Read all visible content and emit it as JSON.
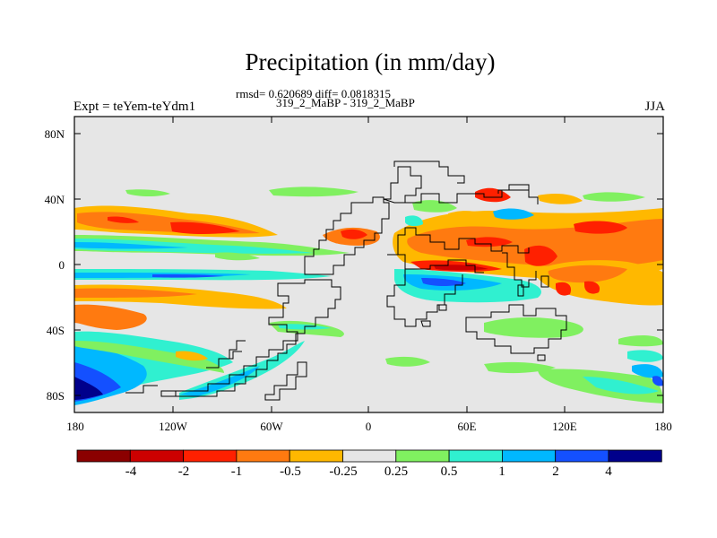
{
  "title": "Precipitation (in mm/day)",
  "stats": "rmsd= 0.620689 diff= 0.0818315",
  "cases": "319_2_MaBP - 319_2_MaBP",
  "left_string": "Expt = teYem-teYdm1",
  "right_string": "JJA",
  "lat_labels": [
    "80N",
    "40N",
    "0",
    "40S",
    "80S"
  ],
  "lon_labels": [
    "180",
    "120W",
    "60W",
    "0",
    "60E",
    "120E",
    "180"
  ],
  "colorbar": {
    "labels": [
      "-4",
      "-2",
      "-1",
      "-0.5",
      "-0.25",
      "0.25",
      "0.5",
      "1",
      "2",
      "4"
    ],
    "colors": [
      "#8b0000",
      "#cc0000",
      "#ff2000",
      "#ff7a10",
      "#ffb800",
      "#e6e6e6",
      "#80f060",
      "#30f0d0",
      "#00b8ff",
      "#1450ff",
      "#00008b"
    ]
  }
}
